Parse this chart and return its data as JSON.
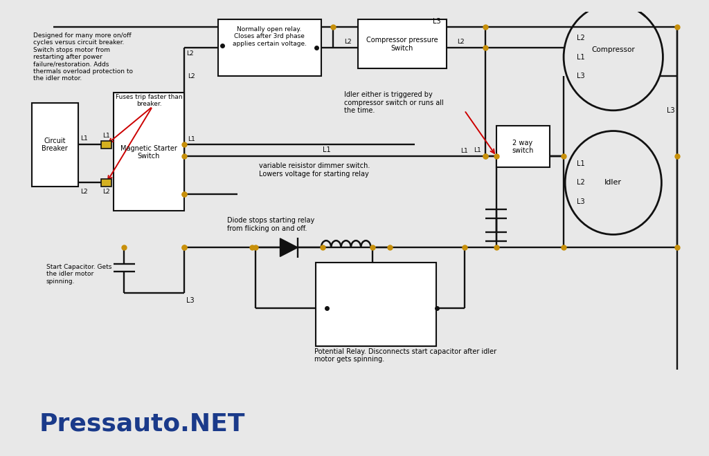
{
  "bg_color": "#e8e8e8",
  "diagram_bg": "#ffffff",
  "line_color": "#111111",
  "orange_color": "#c8900a",
  "red_color": "#cc0000",
  "blue_color": "#1a3a8a",
  "title": "Pressauto.NET",
  "left_annotation": "Designed for many more on/off\ncycles versus circuit breaker.\nSwitch stops motor from\nrestarting after power\nfailure/restoration. Adds\nthermals overload protection to\nthe idler motor.",
  "fuses_text": "Fuses trip faster than\nbreaker.",
  "relay_label": "Normally open relay.\nCloses after 3rd phase\napplies certain voltage.",
  "comp_switch": "Compressor pressure\nSwitch",
  "idler_annot": "Idler either is triggered by\ncompressor switch or runs all\nthe time.",
  "variable_text": "variable reisistor dimmer switch.\nLowers voltage for starting relay",
  "diode_text": "Diode stops starting relay\nfrom flicking on and off.",
  "start_cap_text": "Start Capacitor. Gets\nthe idler motor\nspinning.",
  "potential_text": "Potential Relay. Disconnects start capacitor after idler\nmotor gets spinning.",
  "L3_label": "L3"
}
